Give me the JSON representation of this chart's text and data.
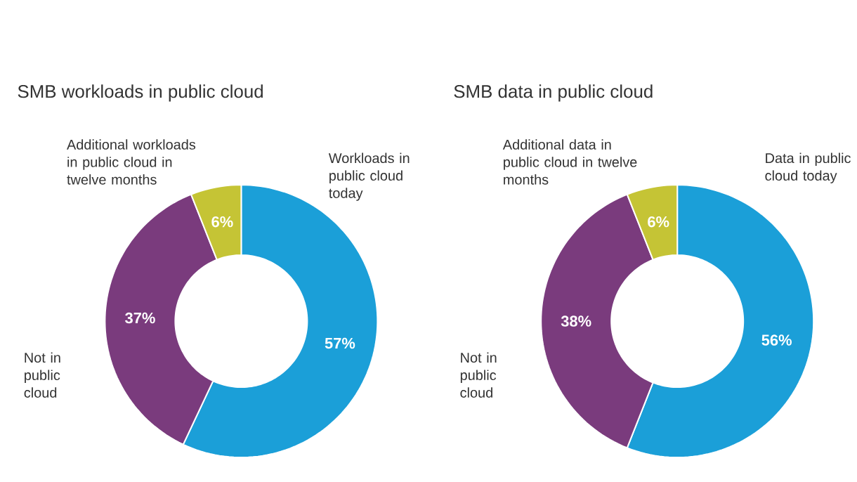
{
  "chart_data": [
    {
      "type": "donut",
      "title": "SMB workloads in public cloud",
      "categories": [
        "Workloads in public cloud today",
        "Not in public cloud",
        "Additional workloads in public cloud in twelve months"
      ],
      "values": [
        57,
        37,
        6
      ],
      "colors": [
        "#1b9fd8",
        "#7a3b7d",
        "#c5c435"
      ],
      "value_labels": [
        "57%",
        "37%",
        "6%"
      ]
    },
    {
      "type": "donut",
      "title": "SMB data in public cloud",
      "categories": [
        "Data in public cloud today",
        "Not in public cloud",
        "Additional data in public cloud in twelve months"
      ],
      "values": [
        56,
        38,
        6
      ],
      "colors": [
        "#1b9fd8",
        "#7a3b7d",
        "#c5c435"
      ],
      "value_labels": [
        "56%",
        "38%",
        "6%"
      ]
    }
  ]
}
